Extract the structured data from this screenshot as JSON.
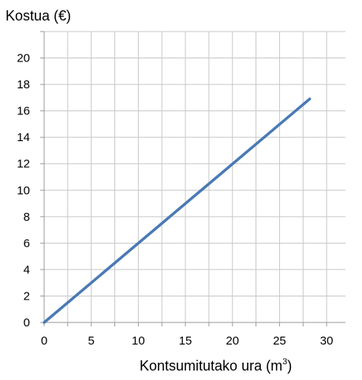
{
  "chart_data": {
    "type": "line",
    "ylabel": "Kostua (€)",
    "xlabel": "Kontsumitutako ura (m",
    "xlabel_superscript": "3",
    "xlabel_suffix": ")",
    "xlim": [
      0,
      32
    ],
    "ylim": [
      0,
      22
    ],
    "x_ticks": [
      0,
      5,
      10,
      15,
      20,
      25,
      30
    ],
    "y_ticks": [
      0,
      2,
      4,
      6,
      8,
      10,
      12,
      14,
      16,
      18,
      20
    ],
    "grid": true,
    "grid_step_x": 2.5,
    "grid_step_y": 2,
    "series": [
      {
        "color": "#4a7ab5",
        "x": [
          0,
          28.2
        ],
        "y": [
          0,
          16.9
        ]
      }
    ]
  }
}
